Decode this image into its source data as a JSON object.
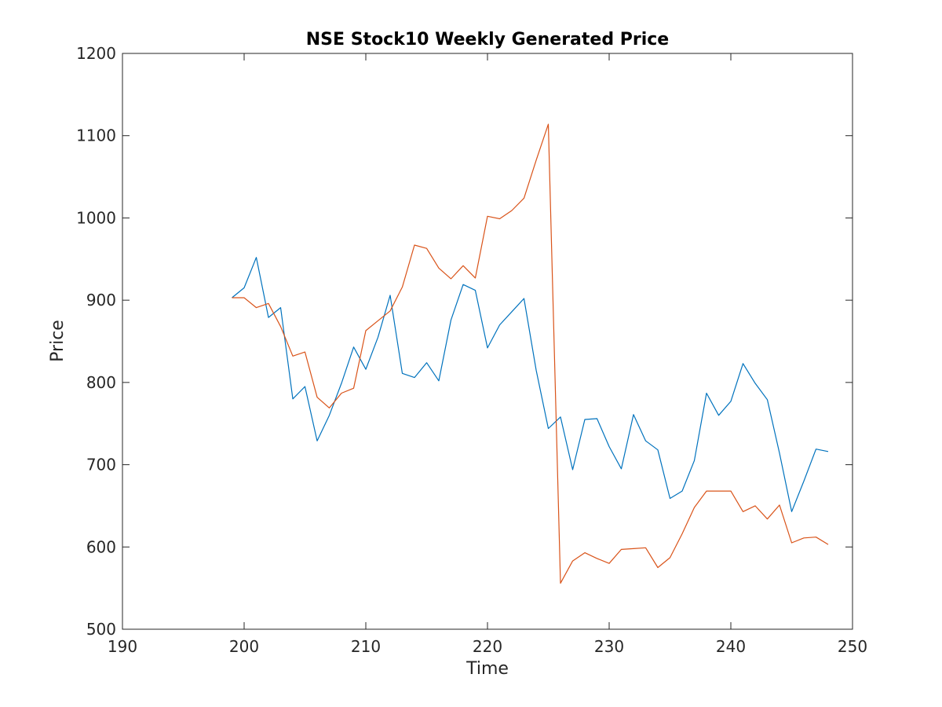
{
  "chart_data": {
    "type": "line",
    "title": "NSE Stock10 Weekly Generated Price",
    "xlabel": "Time",
    "ylabel": "Price",
    "xlim": [
      190,
      250
    ],
    "ylim": [
      500,
      1200
    ],
    "xticks": [
      "190",
      "200",
      "210",
      "220",
      "230",
      "240",
      "250"
    ],
    "yticks": [
      "500",
      "600",
      "700",
      "800",
      "900",
      "1000",
      "1100",
      "1200"
    ],
    "grid": false,
    "legend": "none",
    "x": [
      199,
      200,
      201,
      202,
      203,
      204,
      205,
      206,
      207,
      208,
      209,
      210,
      211,
      212,
      213,
      214,
      215,
      216,
      217,
      218,
      219,
      220,
      221,
      222,
      223,
      224,
      225,
      226,
      227,
      228,
      229,
      230,
      231,
      232,
      233,
      234,
      235,
      236,
      237,
      238,
      239,
      240,
      241,
      242,
      243,
      244,
      245,
      246,
      247,
      248
    ],
    "series": [
      {
        "color": "#0072BD",
        "values": [
          903,
          915,
          952,
          879,
          891,
          780,
          795,
          729,
          760,
          799,
          843,
          816,
          855,
          906,
          811,
          806,
          824,
          802,
          876,
          919,
          912,
          842,
          870,
          886,
          902,
          815,
          744,
          758,
          694,
          755,
          756,
          722,
          695,
          761,
          729,
          718,
          659,
          668,
          705,
          787,
          760,
          777,
          823,
          799,
          779,
          714,
          643,
          680,
          719,
          716
        ]
      },
      {
        "color": "#D95319",
        "values": [
          903,
          903,
          891,
          896,
          868,
          832,
          837,
          782,
          769,
          787,
          793,
          863,
          875,
          887,
          916,
          967,
          963,
          939,
          926,
          942,
          927,
          1002,
          999,
          1009,
          1024,
          1070,
          1114,
          556,
          583,
          593,
          586,
          580,
          597,
          598,
          599,
          575,
          587,
          616,
          648,
          668,
          668,
          668,
          643,
          650,
          634,
          651,
          605,
          611,
          612,
          603
        ]
      }
    ]
  }
}
